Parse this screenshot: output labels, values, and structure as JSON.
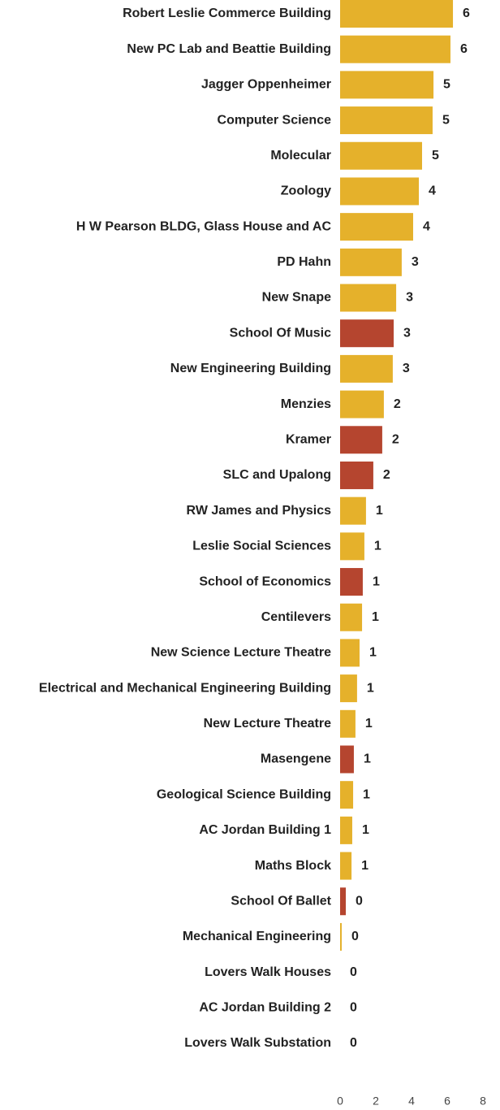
{
  "chart_data": {
    "type": "barh",
    "categories": [
      "Robert Leslie Commerce Building",
      "New PC Lab and Beattie Building",
      "Jagger Oppenheimer",
      "Computer Science",
      "Molecular",
      "Zoology",
      "H W Pearson BLDG, Glass House and AC",
      "PD Hahn",
      "New Snape",
      "School Of Music",
      "New Engineering Building",
      "Menzies",
      "Kramer",
      "SLC and Upalong",
      "RW James and Physics",
      "Leslie Social Sciences",
      "School of Economics",
      "Centilevers",
      "New Science Lecture Theatre",
      "Electrical and Mechanical Engineering Building",
      "New Lecture Theatre",
      "Masengene",
      "Geological Science Building",
      "AC Jordan Building 1",
      "Maths Block",
      "School Of Ballet",
      "Mechanical Engineering",
      "Lovers Walk Houses",
      "AC Jordan Building 2",
      "Lovers Walk Substation"
    ],
    "values": [
      6.32,
      6.18,
      5.23,
      5.18,
      4.59,
      4.41,
      4.09,
      3.45,
      3.14,
      3.0,
      2.95,
      2.45,
      2.36,
      1.86,
      1.45,
      1.36,
      1.27,
      1.23,
      1.09,
      0.95,
      0.86,
      0.77,
      0.73,
      0.68,
      0.64,
      0.32,
      0.09,
      0,
      0,
      0
    ],
    "value_labels": [
      "6",
      "6",
      "5",
      "5",
      "5",
      "4",
      "4",
      "3",
      "3",
      "3",
      "3",
      "2",
      "2",
      "2",
      "1",
      "1",
      "1",
      "1",
      "1",
      "1",
      "1",
      "1",
      "1",
      "1",
      "1",
      "0",
      "0",
      "0",
      "0",
      "0"
    ],
    "colors": [
      "#e5b12b",
      "#e5b12b",
      "#e5b12b",
      "#e5b12b",
      "#e5b12b",
      "#e5b12b",
      "#e5b12b",
      "#e5b12b",
      "#e5b12b",
      "#b5452f",
      "#e5b12b",
      "#e5b12b",
      "#b5452f",
      "#b5452f",
      "#e5b12b",
      "#e5b12b",
      "#b5452f",
      "#e5b12b",
      "#e5b12b",
      "#e5b12b",
      "#e5b12b",
      "#b5452f",
      "#e5b12b",
      "#e5b12b",
      "#e5b12b",
      "#b5452f",
      "#e5b12b",
      "#e5b12b",
      "#e5b12b",
      "#e5b12b"
    ],
    "xlim": [
      0,
      8
    ],
    "xticks": [
      0,
      2,
      4,
      6,
      8
    ],
    "grid": false
  }
}
